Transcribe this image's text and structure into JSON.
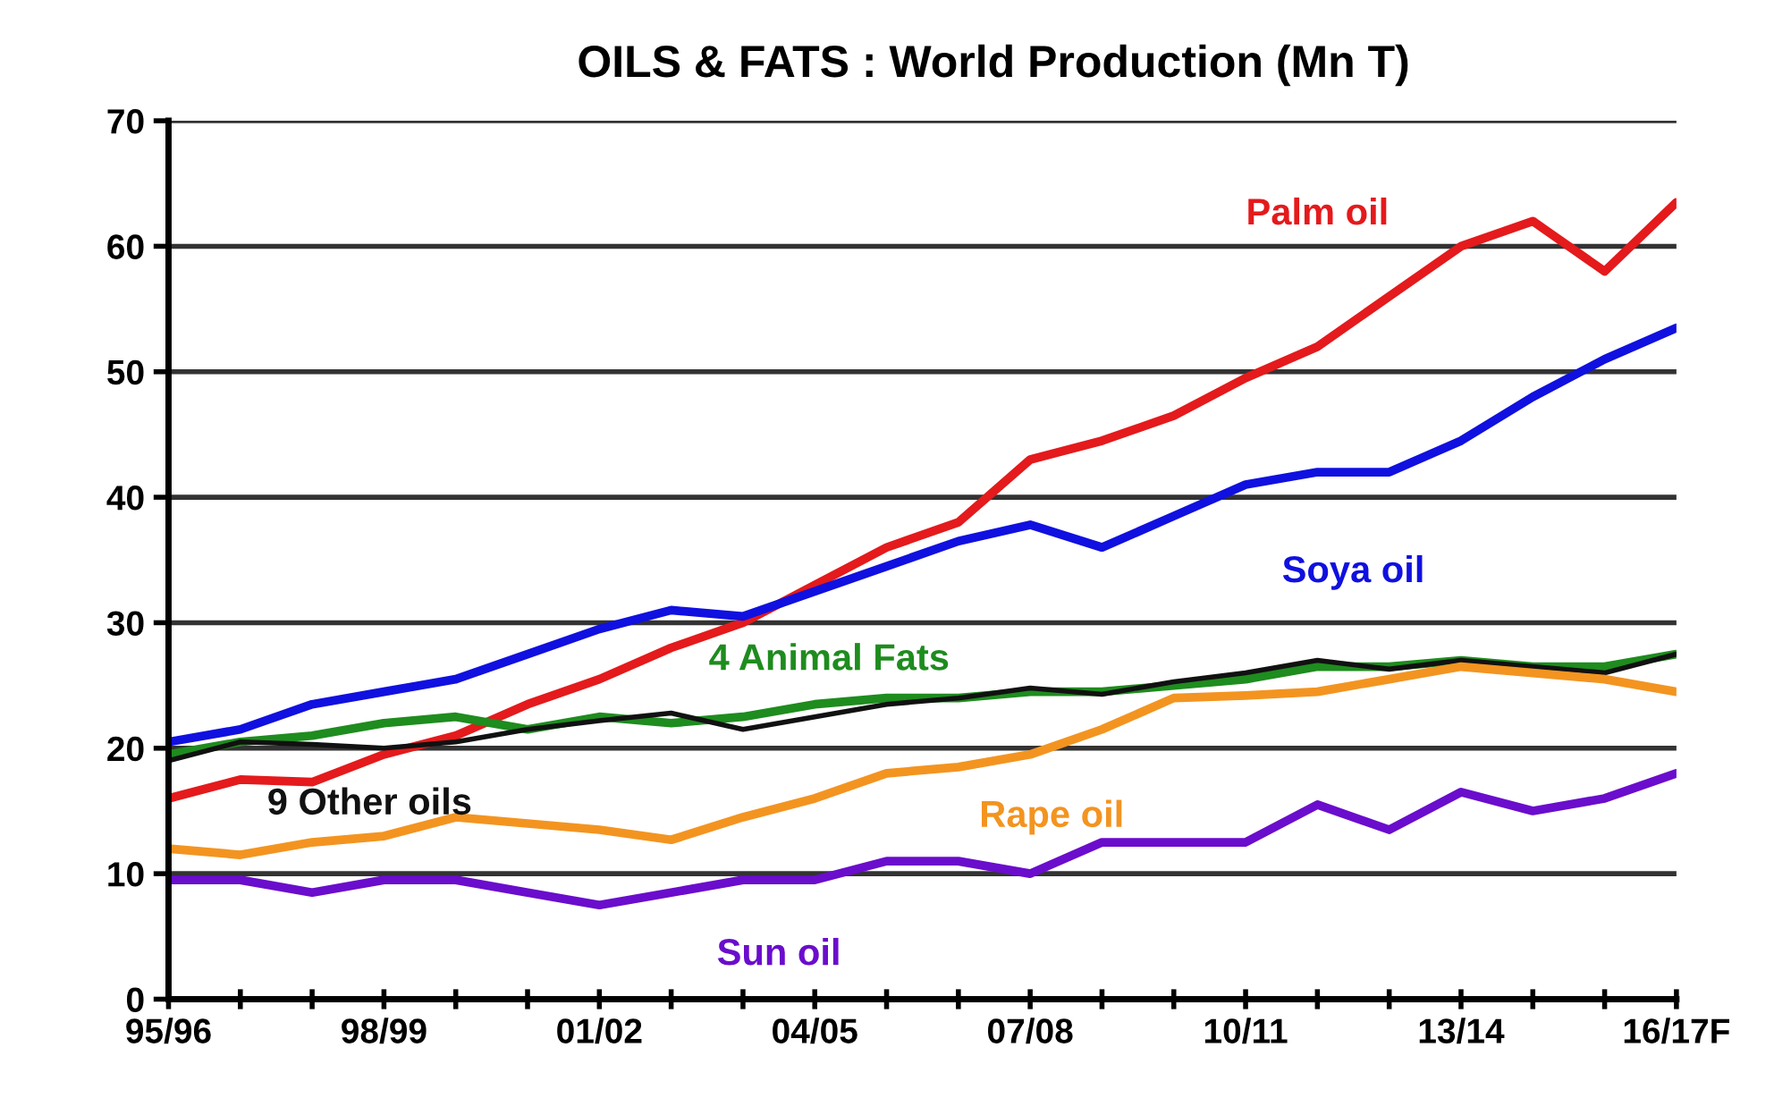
{
  "chart_data": {
    "type": "line",
    "title": "OILS & FATS : World Production (Mn T)",
    "categories": [
      "95/96",
      null,
      null,
      "98/99",
      null,
      null,
      "01/02",
      null,
      null,
      "04/05",
      null,
      null,
      "07/08",
      null,
      null,
      "10/11",
      null,
      null,
      "13/14",
      null,
      null,
      "16/17F"
    ],
    "series": [
      {
        "name": "Palm oil",
        "color": "#e41a1c",
        "values": [
          16,
          17.5,
          17.3,
          19.5,
          21,
          23.5,
          25.5,
          28,
          30,
          33,
          36,
          38,
          43,
          44.5,
          46.5,
          49.5,
          52,
          56,
          60,
          62,
          58,
          63.5
        ]
      },
      {
        "name": "Soya oil",
        "color": "#1010e0",
        "values": [
          20.5,
          21.5,
          23.5,
          24.5,
          25.5,
          27.5,
          29.5,
          31,
          30.5,
          32.5,
          34.5,
          36.5,
          37.8,
          36,
          38.5,
          41,
          42,
          42,
          44.5,
          48,
          51,
          53.5
        ]
      },
      {
        "name": "4 Animal Fats",
        "color": "#1e8c1e",
        "values": [
          19.5,
          20.5,
          21,
          22,
          22.5,
          21.5,
          22.5,
          22,
          22.5,
          23.5,
          24,
          24,
          24.5,
          24.5,
          25,
          25.5,
          26.5,
          26.5,
          27,
          26.5,
          26.5,
          27.5
        ]
      },
      {
        "name": "9 Other oils",
        "color": "#111111",
        "values": [
          19,
          20.5,
          20.3,
          20,
          20.5,
          21.5,
          22.2,
          22.8,
          21.5,
          22.5,
          23.5,
          24,
          24.8,
          24.3,
          25.3,
          26,
          27,
          26.3,
          27,
          26.5,
          26,
          27.5
        ]
      },
      {
        "name": "Rape oil",
        "color": "#f39420",
        "values": [
          12,
          11.5,
          12.5,
          13,
          14.5,
          14,
          13.5,
          12.7,
          14.5,
          16,
          18,
          18.5,
          19.5,
          21.5,
          24,
          24.2,
          24.5,
          25.5,
          26.5,
          26,
          25.5,
          24.5
        ]
      },
      {
        "name": "Sun oil",
        "color": "#6a0dcc",
        "values": [
          9.5,
          9.5,
          8.5,
          9.5,
          9.5,
          8.5,
          7.5,
          8.5,
          9.5,
          9.5,
          11,
          11,
          10,
          12.5,
          12.5,
          12.5,
          15.5,
          13.5,
          16.5,
          15,
          16,
          18
        ]
      }
    ],
    "ylim": [
      0,
      70
    ],
    "yticks": [
      0,
      10,
      20,
      30,
      40,
      50,
      60,
      70
    ],
    "grid": "y",
    "legend": false
  }
}
